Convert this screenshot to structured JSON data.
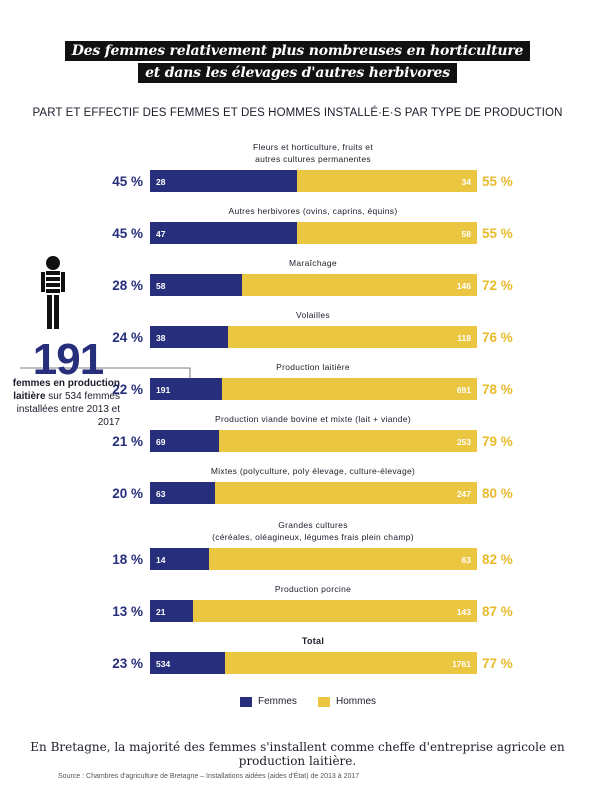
{
  "title_lines": [
    "Des femmes relativement plus nombreuses en horticulture",
    "et dans les élevages d'autres herbivores"
  ],
  "subtitle": "PART ET EFFECTIF DES FEMMES ET DES HOMMES INSTALLÉ·E·S PAR TYPE DE PRODUCTION",
  "callout": {
    "number": "191",
    "text_bold": "femmes en production laitière",
    "text_rest": " sur 534 femmes installées entre 2013 et 2017"
  },
  "legend": {
    "femmes": "Femmes",
    "hommes": "Hommes"
  },
  "footer": "En Bretagne, la majorité des femmes s'installent comme cheffe d'entreprise agricole en production laitière.",
  "source": "Source : Chambres d'agriculture de Bretagne – Installations aidées (aides d'État) de 2013 à 2017",
  "colors": {
    "femmes": "#272f7d",
    "hommes": "#ebc641",
    "pct_femmes": "#272f7d",
    "pct_hommes": "#e8bb2c"
  },
  "chart_data": {
    "type": "bar",
    "orientation": "horizontal-stacked-100",
    "series": [
      {
        "name": "Femmes",
        "values": [
          28,
          47,
          58,
          38,
          191,
          69,
          63,
          14,
          21,
          534
        ],
        "shares": [
          "45 %",
          "45 %",
          "28 %",
          "24 %",
          "22 %",
          "21 %",
          "20 %",
          "18 %",
          "13 %",
          "23 %"
        ]
      },
      {
        "name": "Hommes",
        "values": [
          34,
          58,
          146,
          118,
          691,
          253,
          247,
          63,
          143,
          1761
        ],
        "shares": [
          "55 %",
          "55 %",
          "72 %",
          "76 %",
          "78 %",
          "79 %",
          "80 %",
          "82 %",
          "87 %",
          "77 %"
        ]
      }
    ],
    "share_femmes": [
      45,
      45,
      28,
      24,
      22,
      21,
      20,
      18,
      13,
      23
    ],
    "categories": [
      [
        "Fleurs et horticulture, fruits et",
        "autres cultures permanentes"
      ],
      [
        "Autres herbivores (ovins, caprins, équins)"
      ],
      [
        "Maraîchage"
      ],
      [
        "Volailles"
      ],
      [
        "Production laitière"
      ],
      [
        "Production viande bovine et mixte (lait + viande)"
      ],
      [
        "Mixtes (polyculture, poly élevage, culture-élevage)"
      ],
      [
        "Grandes cultures",
        "(céréales, oléagineux, légumes frais plein champ)"
      ],
      [
        "Production porcine"
      ],
      [
        "Total"
      ]
    ],
    "total_index": 9
  }
}
